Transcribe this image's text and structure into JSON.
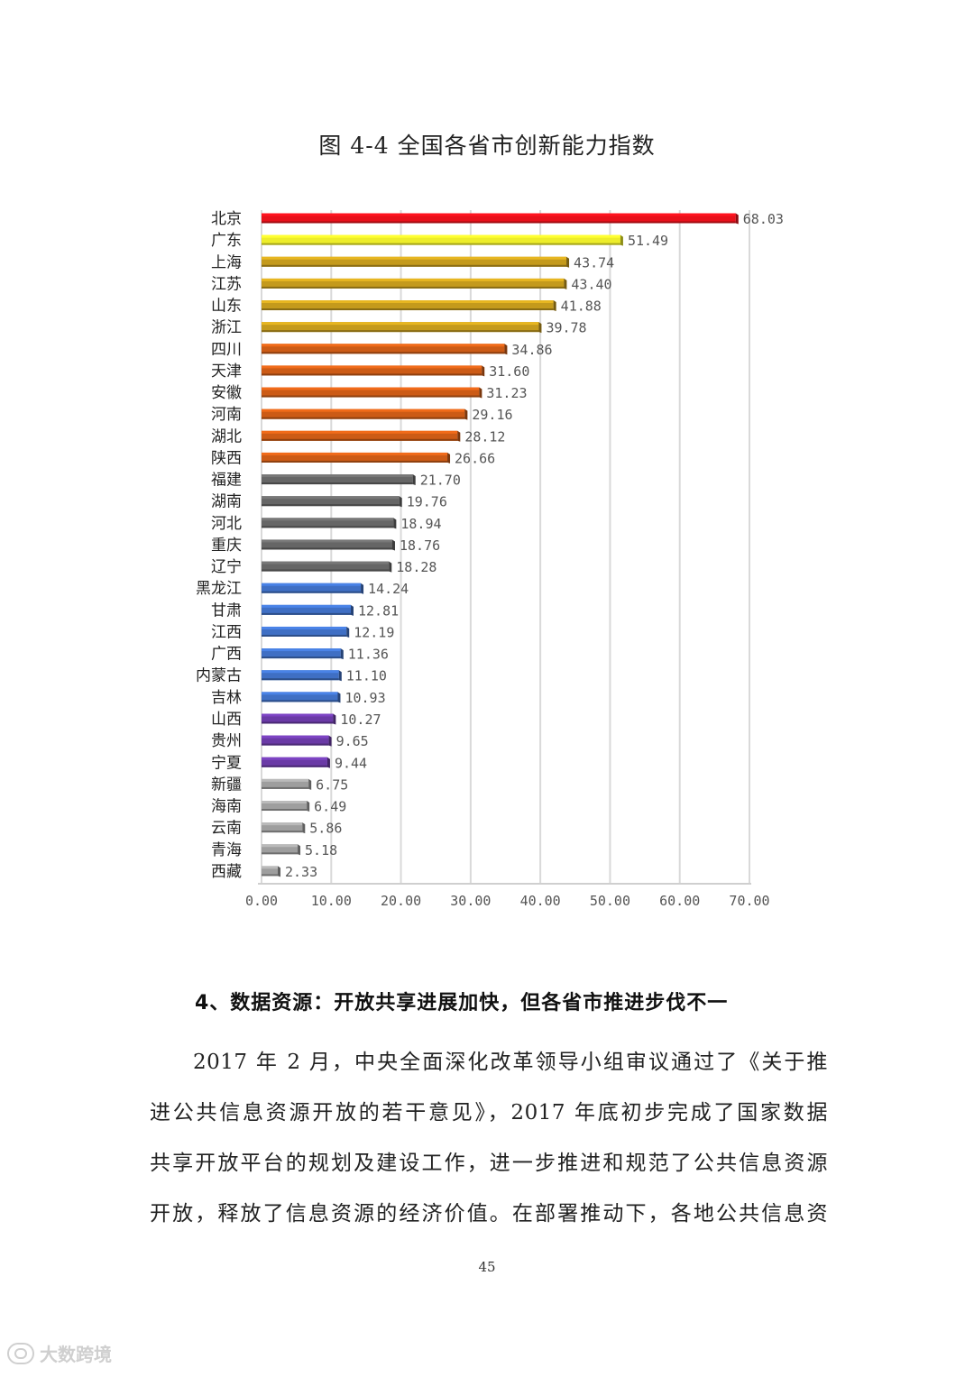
{
  "chart_data": {
    "type": "bar",
    "orientation": "horizontal",
    "title": "图 4-4 全国各省市创新能力指数",
    "xlabel": "",
    "ylabel": "",
    "xlim": [
      0,
      70
    ],
    "xticks": [
      0,
      10,
      20,
      30,
      40,
      50,
      60,
      70
    ],
    "xtick_labels": [
      "0.00",
      "10.00",
      "20.00",
      "30.00",
      "40.00",
      "50.00",
      "60.00",
      "70.00"
    ],
    "grid": true,
    "categories": [
      "北京",
      "广东",
      "上海",
      "江苏",
      "山东",
      "浙江",
      "四川",
      "天津",
      "安徽",
      "河南",
      "湖北",
      "陕西",
      "福建",
      "湖南",
      "河北",
      "重庆",
      "辽宁",
      "黑龙江",
      "甘肃",
      "江西",
      "广西",
      "内蒙古",
      "吉林",
      "山西",
      "贵州",
      "宁夏",
      "新疆",
      "海南",
      "云南",
      "青海",
      "西藏"
    ],
    "values": [
      68.03,
      51.49,
      43.74,
      43.4,
      41.88,
      39.78,
      34.86,
      31.6,
      31.23,
      29.16,
      28.12,
      26.66,
      21.7,
      19.76,
      18.94,
      18.76,
      18.28,
      14.24,
      12.81,
      12.19,
      11.36,
      11.1,
      10.93,
      10.27,
      9.65,
      9.44,
      6.75,
      6.49,
      5.86,
      5.18,
      2.33
    ],
    "value_labels": [
      "68.03",
      "51.49",
      "43.74",
      "43.40",
      "41.88",
      "39.78",
      "34.86",
      "31.60",
      "31.23",
      "29.16",
      "28.12",
      "26.66",
      "21.70",
      "19.76",
      "18.94",
      "18.76",
      "18.28",
      "14.24",
      "12.81",
      "12.19",
      "11.36",
      "11.10",
      "10.93",
      "10.27",
      "9.65",
      "9.44",
      "6.75",
      "6.49",
      "5.86",
      "5.18",
      "2.33"
    ],
    "bar_colors": [
      "#e8101a",
      "#eded2a",
      "#c49a1c",
      "#c49a1c",
      "#c49a1c",
      "#c49a1c",
      "#cc5b16",
      "#cc5b16",
      "#cc5b16",
      "#cc5b16",
      "#cc5b16",
      "#cc5b16",
      "#666666",
      "#666666",
      "#666666",
      "#666666",
      "#666666",
      "#3f6fc4",
      "#3f6fc4",
      "#3f6fc4",
      "#3f6fc4",
      "#3f6fc4",
      "#3f6fc4",
      "#6a3aa6",
      "#6a3aa6",
      "#6a3aa6",
      "#9e9e9e",
      "#9e9e9e",
      "#9e9e9e",
      "#9e9e9e",
      "#9e9e9e"
    ]
  },
  "section": {
    "heading": "4、数据资源：开放共享进展加快，但各省市推进步伐不一",
    "paragraph_lines": [
      "2017 年 2 月，中央全面深化改革领导小组审议通过了《关于推",
      "进公共信息资源开放的若干意见》，2017 年底初步完成了国家数据",
      "共享开放平台的规划及建设工作，进一步推进和规范了公共信息资源",
      "开放，释放了信息资源的经济价值。在部署推动下，各地公共信息资"
    ]
  },
  "page_number": "45",
  "watermark": "大数跨境"
}
